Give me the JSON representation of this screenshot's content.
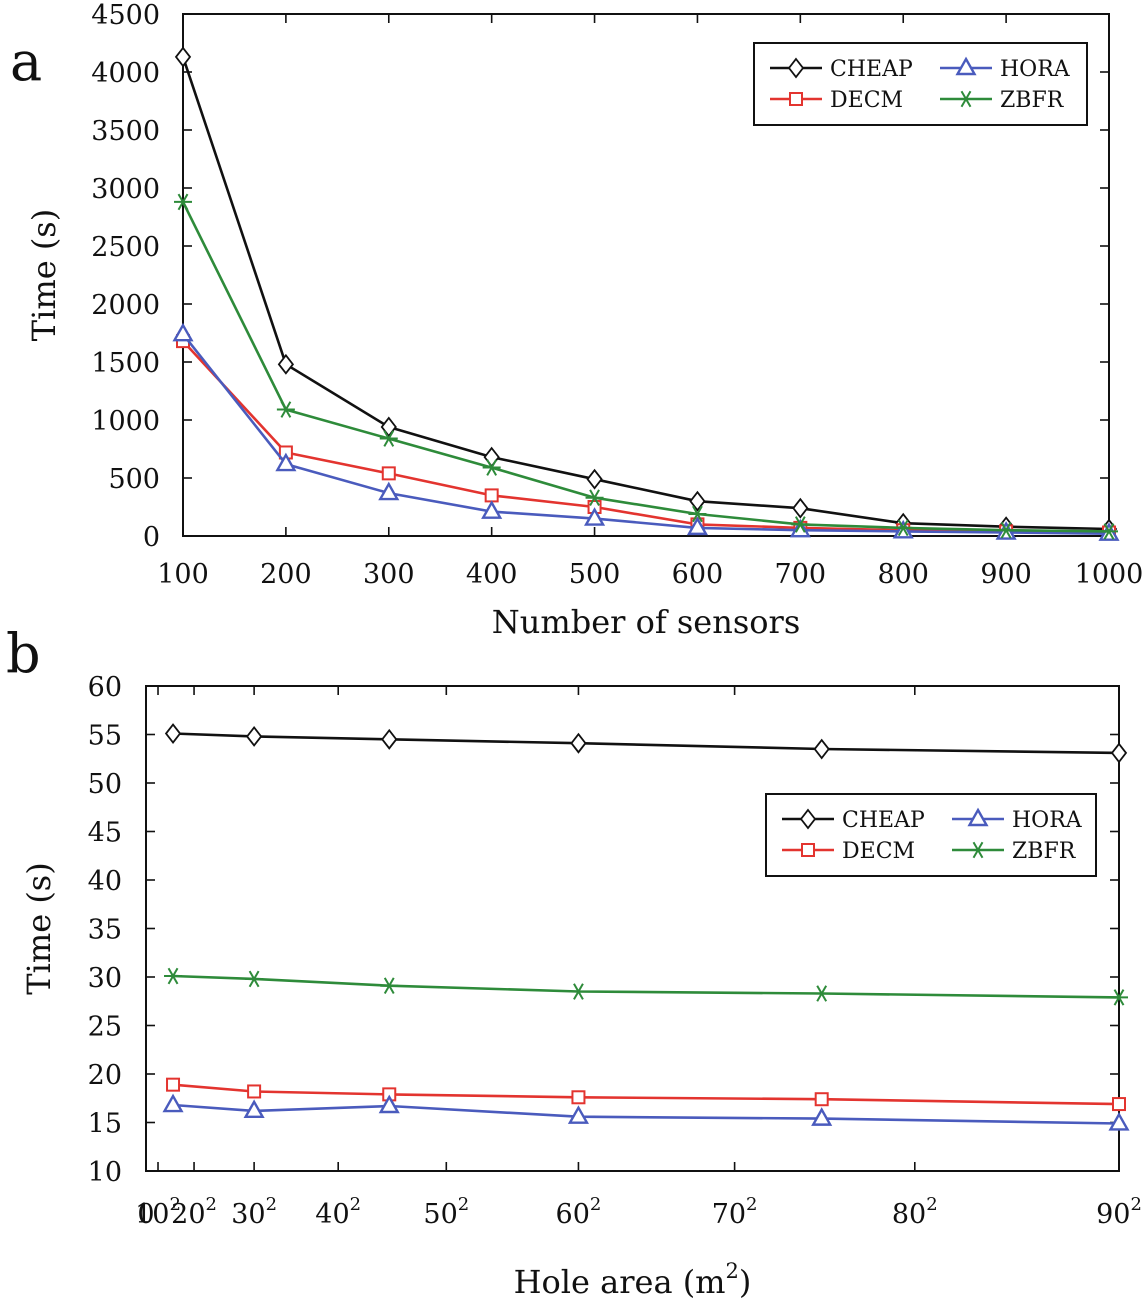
{
  "chart_data": [
    {
      "panel": "a",
      "type": "line",
      "xlabel": "Number of sensors",
      "ylabel": "Time (s)",
      "xlim": [
        100,
        1000
      ],
      "ylim": [
        0,
        4500
      ],
      "xticks": [
        100,
        200,
        300,
        400,
        500,
        600,
        700,
        800,
        900,
        1000
      ],
      "yticks": [
        0,
        500,
        1000,
        1500,
        2000,
        2500,
        3000,
        3500,
        4000,
        4500
      ],
      "x": [
        100,
        200,
        300,
        400,
        500,
        600,
        700,
        800,
        900,
        1000
      ],
      "legend": "top-right",
      "grid": false,
      "series": [
        {
          "name": "CHEAP",
          "color": "#111111",
          "marker": "diamond",
          "values": [
            4130,
            1480,
            940,
            680,
            490,
            300,
            240,
            110,
            80,
            60
          ]
        },
        {
          "name": "DECM",
          "color": "#e3342f",
          "marker": "square",
          "values": [
            1680,
            720,
            540,
            350,
            250,
            100,
            70,
            50,
            40,
            30
          ]
        },
        {
          "name": "HORA",
          "color": "#4a5bbd",
          "marker": "triangle",
          "values": [
            1740,
            620,
            370,
            210,
            150,
            70,
            50,
            40,
            30,
            20
          ]
        },
        {
          "name": "ZBFR",
          "color": "#2e8b3a",
          "marker": "star",
          "values": [
            2880,
            1090,
            840,
            590,
            330,
            190,
            100,
            70,
            50,
            40
          ]
        }
      ]
    },
    {
      "panel": "b",
      "type": "line",
      "xlabel": "Hole area (m",
      "xlabel_sup": "2",
      "xlabel_end": ")",
      "ylabel": "Time (s)",
      "xlim": [
        0,
        8100
      ],
      "ylim": [
        10,
        60
      ],
      "xticks": [
        {
          "value": 0,
          "base": "0",
          "sup": ""
        },
        {
          "value": 100,
          "base": "10",
          "sup": "2"
        },
        {
          "value": 400,
          "base": "20",
          "sup": "2"
        },
        {
          "value": 900,
          "base": "30",
          "sup": "2"
        },
        {
          "value": 1600,
          "base": "40",
          "sup": "2"
        },
        {
          "value": 2500,
          "base": "50",
          "sup": "2"
        },
        {
          "value": 3600,
          "base": "60",
          "sup": "2"
        },
        {
          "value": 4900,
          "base": "70",
          "sup": "2"
        },
        {
          "value": 6400,
          "base": "80",
          "sup": "2"
        },
        {
          "value": 8100,
          "base": "90",
          "sup": "2"
        }
      ],
      "yticks": [
        10,
        15,
        20,
        25,
        30,
        35,
        40,
        45,
        50,
        55,
        60
      ],
      "x": [
        225,
        900,
        2025,
        3600,
        5625,
        8100
      ],
      "legend": "right",
      "grid": false,
      "series": [
        {
          "name": "CHEAP",
          "color": "#111111",
          "marker": "diamond",
          "values": [
            55.1,
            54.8,
            54.5,
            54.1,
            53.5,
            53.1
          ]
        },
        {
          "name": "DECM",
          "color": "#e3342f",
          "marker": "square",
          "values": [
            18.9,
            18.2,
            17.9,
            17.6,
            17.4,
            16.9
          ]
        },
        {
          "name": "HORA",
          "color": "#4a5bbd",
          "marker": "triangle",
          "values": [
            16.8,
            16.2,
            16.7,
            15.6,
            15.4,
            14.9
          ]
        },
        {
          "name": "ZBFR",
          "color": "#2e8b3a",
          "marker": "star",
          "values": [
            30.1,
            29.8,
            29.1,
            28.5,
            28.3,
            27.9
          ]
        }
      ]
    }
  ]
}
